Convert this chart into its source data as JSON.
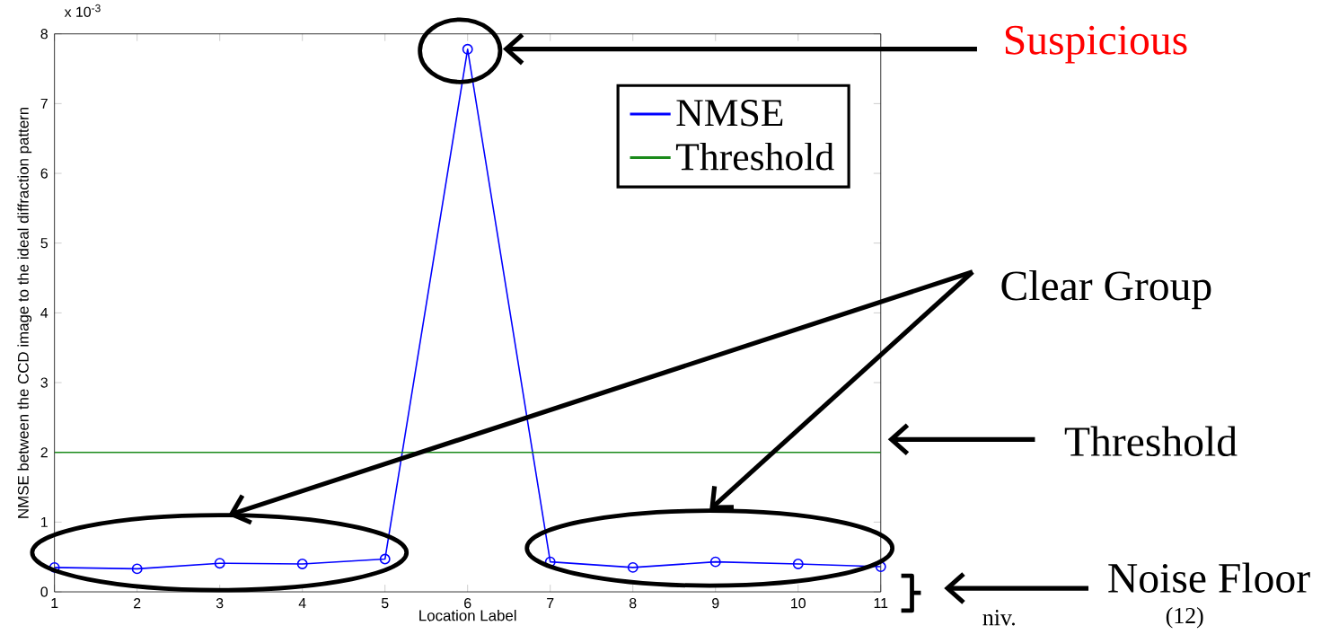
{
  "chart_data": {
    "type": "line",
    "xlabel": "Location Label",
    "ylabel": "NMSE between the CCD image to the ideal diffraction pattern",
    "x": [
      1,
      2,
      3,
      4,
      5,
      6,
      7,
      8,
      9,
      10,
      11
    ],
    "series": [
      {
        "name": "NMSE",
        "color": "#0000ff",
        "marker": "circle",
        "values": [
          0.35,
          0.33,
          0.41,
          0.4,
          0.47,
          7.78,
          0.43,
          0.35,
          0.43,
          0.4,
          0.36
        ]
      },
      {
        "name": "Threshold",
        "color": "#1a8a1a",
        "marker": "none",
        "values": [
          2,
          2,
          2,
          2,
          2,
          2,
          2,
          2,
          2,
          2,
          2
        ]
      }
    ],
    "xlim": [
      1,
      11
    ],
    "xticks": [
      1,
      2,
      3,
      4,
      5,
      6,
      7,
      8,
      9,
      10,
      11
    ],
    "ylim": [
      0,
      8
    ],
    "yticks": [
      0,
      1,
      2,
      3,
      4,
      5,
      6,
      7,
      8
    ],
    "legend": "top right",
    "grid": false,
    "line_style": "solid",
    "annotations": [
      "Suspicious",
      "Clear Group",
      "Threshold",
      "Noise Floor",
      "niv.",
      "(12)",
      "x 10$^{-3}$"
    ]
  }
}
